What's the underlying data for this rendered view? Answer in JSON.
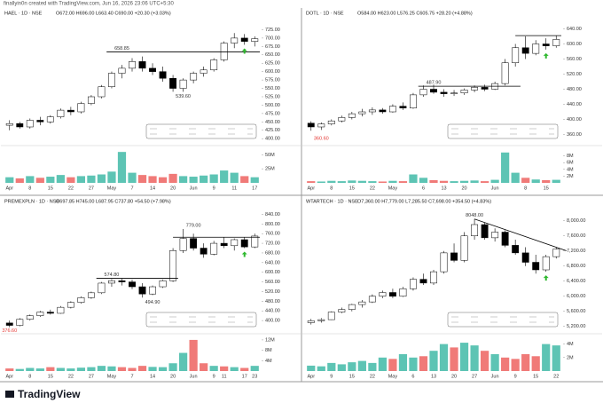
{
  "header": "finallyin0n created with TradingView.com, Jun 16, 2026 23:06 UTC+5:30",
  "footer": "TradingView",
  "chart_data": [
    {
      "type": "candlestick",
      "title": "HAEL · 1D · NSE",
      "ohlc": "O672.00 H696.00 L663.40 C690.00 +20.30 (+3.03%)",
      "categories": [
        "Apr",
        null,
        "8",
        null,
        "15",
        null,
        "22",
        null,
        "27",
        null,
        "May",
        null,
        "7",
        null,
        "14",
        null,
        "20",
        null,
        "Jun",
        null,
        "9",
        null,
        "11",
        null,
        "17"
      ],
      "open": [
        440,
        445,
        435,
        455,
        450,
        465,
        485,
        480,
        505,
        525,
        555,
        595,
        610,
        630,
        610,
        600,
        580,
        550,
        575,
        595,
        605,
        635,
        685,
        700,
        690
      ],
      "high": [
        455,
        450,
        460,
        465,
        470,
        490,
        495,
        510,
        530,
        560,
        600,
        620,
        640,
        645,
        625,
        615,
        590,
        580,
        600,
        615,
        640,
        690,
        715,
        712,
        705
      ],
      "low": [
        425,
        430,
        430,
        440,
        445,
        460,
        470,
        475,
        500,
        520,
        550,
        580,
        600,
        600,
        590,
        570,
        540,
        540,
        565,
        585,
        600,
        630,
        670,
        680,
        675
      ],
      "close": [
        445,
        435,
        455,
        450,
        465,
        485,
        480,
        505,
        525,
        555,
        595,
        610,
        630,
        610,
        600,
        580,
        550,
        575,
        595,
        605,
        635,
        685,
        700,
        690,
        698
      ],
      "volume": [
        10,
        8,
        12,
        9,
        11,
        14,
        10,
        12,
        13,
        15,
        20,
        55,
        18,
        14,
        12,
        10,
        16,
        12,
        11,
        13,
        15,
        22,
        18,
        12,
        10
      ],
      "ylim": [
        390,
        750
      ],
      "yticks": [
        {
          "value": 400,
          "label": "400.00"
        },
        {
          "value": 425,
          "label": "425.00"
        },
        {
          "value": 450,
          "label": "450.00"
        },
        {
          "value": 475,
          "label": "475.00"
        },
        {
          "value": 500,
          "label": "500.00"
        },
        {
          "value": 525,
          "label": "525.00"
        },
        {
          "value": 550,
          "label": "550.00"
        },
        {
          "value": 575,
          "label": "575.00"
        },
        {
          "value": 600,
          "label": "600.00"
        },
        {
          "value": 625,
          "label": "625.00"
        },
        {
          "value": 650,
          "label": "650.00"
        },
        {
          "value": 675,
          "label": "675.00"
        },
        {
          "value": 700,
          "label": "700.00"
        },
        {
          "value": 725,
          "label": "725.00"
        }
      ],
      "vol_ylim": [
        0,
        60
      ],
      "vol_yticks": [
        {
          "value": 25,
          "label": "25M"
        },
        {
          "value": 50,
          "label": "50M"
        }
      ],
      "up_color": "#ffffff",
      "down_color": "#000000",
      "annotations": [
        {
          "label": "658.85",
          "value": 658.85
        },
        {
          "label": "539.60",
          "value": 539.6
        }
      ]
    },
    {
      "type": "candlestick",
      "title": "DOTL · 1D · NSE",
      "ohlc": "O584.00 H623.00 L576.25 C605.75 +28.20 (+4.88%)",
      "categories": [
        "Apr",
        null,
        "8",
        null,
        "15",
        null,
        "22",
        null,
        "May",
        null,
        null,
        "6",
        null,
        "13",
        null,
        "20",
        null,
        null,
        "Jun",
        null,
        null,
        "8",
        null,
        "15",
        null
      ],
      "open": [
        390,
        380,
        388,
        396,
        405,
        415,
        420,
        425,
        420,
        435,
        430,
        465,
        480,
        472,
        468,
        470,
        478,
        485,
        480,
        495,
        550,
        590,
        575,
        600,
        595
      ],
      "high": [
        395,
        392,
        400,
        410,
        420,
        428,
        432,
        430,
        440,
        445,
        470,
        490,
        492,
        480,
        478,
        482,
        490,
        492,
        500,
        560,
        600,
        620,
        610,
        615,
        622
      ],
      "low": [
        370,
        372,
        384,
        392,
        400,
        408,
        412,
        415,
        418,
        425,
        428,
        460,
        468,
        460,
        462,
        465,
        472,
        475,
        478,
        490,
        540,
        560,
        570,
        585,
        590
      ],
      "close": [
        380,
        388,
        396,
        405,
        415,
        420,
        425,
        420,
        435,
        430,
        465,
        480,
        472,
        468,
        470,
        478,
        485,
        480,
        495,
        550,
        590,
        575,
        600,
        595,
        612
      ],
      "volume": [
        0.5,
        0.4,
        0.6,
        0.5,
        0.7,
        0.6,
        0.5,
        0.4,
        0.6,
        0.5,
        2.5,
        1.5,
        0.8,
        0.6,
        0.5,
        0.6,
        0.7,
        0.5,
        0.9,
        9,
        3,
        1.5,
        1,
        0.8,
        0.9
      ],
      "ylim": [
        340,
        660
      ],
      "yticks": [
        {
          "value": 360,
          "label": "360.00"
        },
        {
          "value": 400,
          "label": "400.00"
        },
        {
          "value": 440,
          "label": "440.00"
        },
        {
          "value": 480,
          "label": "480.00"
        },
        {
          "value": 520,
          "label": "520.00"
        },
        {
          "value": 560,
          "label": "560.00"
        },
        {
          "value": 600,
          "label": "600.00"
        },
        {
          "value": 640,
          "label": "640.00"
        }
      ],
      "vol_ylim": [
        0,
        10
      ],
      "vol_yticks": [
        {
          "value": 2,
          "label": "2M"
        },
        {
          "value": 4,
          "label": "4M"
        },
        {
          "value": 6,
          "label": "6M"
        },
        {
          "value": 8,
          "label": "8M"
        }
      ],
      "up_color": "#ffffff",
      "down_color": "#000000",
      "annotations": [
        {
          "label": "360.60",
          "value": 360.6
        },
        {
          "label": "487.90",
          "value": 487.9
        }
      ]
    },
    {
      "type": "candlestick",
      "title": "PREMEXPLN · 1D · NSE",
      "ohlc": "O697.85 H745.00 L687.95 C737.80 +54.50 (+7.98%)",
      "categories": [
        "Apr",
        null,
        "8",
        null,
        "15",
        null,
        "22",
        null,
        "27",
        null,
        "May",
        null,
        "7",
        null,
        "14",
        null,
        "20",
        null,
        "Jun",
        null,
        "9",
        "11",
        null,
        "17",
        "23"
      ],
      "open": [
        390,
        380,
        405,
        420,
        435,
        430,
        455,
        475,
        495,
        515,
        555,
        565,
        560,
        540,
        510,
        540,
        565,
        690,
        740,
        700,
        675,
        720,
        710,
        735,
        705
      ],
      "high": [
        400,
        410,
        425,
        440,
        445,
        460,
        480,
        500,
        520,
        560,
        572,
        575,
        570,
        555,
        545,
        570,
        700,
        779,
        760,
        720,
        730,
        745,
        740,
        745,
        760
      ],
      "low": [
        372,
        376,
        400,
        415,
        425,
        428,
        450,
        470,
        490,
        510,
        540,
        545,
        530,
        495,
        505,
        535,
        560,
        680,
        690,
        660,
        670,
        700,
        690,
        700,
        700
      ],
      "close": [
        380,
        405,
        420,
        435,
        430,
        455,
        475,
        495,
        515,
        555,
        565,
        560,
        540,
        510,
        540,
        565,
        690,
        740,
        700,
        675,
        720,
        710,
        735,
        705,
        750
      ],
      "volume": [
        1,
        0.8,
        1.2,
        1,
        1.5,
        1.2,
        1,
        1.3,
        1.5,
        2,
        1.8,
        1.5,
        1.2,
        2,
        1.6,
        1.5,
        3,
        7,
        12,
        3,
        2,
        1.8,
        1.5,
        1.2,
        2
      ],
      "ylim": [
        360,
        860
      ],
      "yticks": [
        {
          "value": 400,
          "label": "400.00"
        },
        {
          "value": 440,
          "label": "440.00"
        },
        {
          "value": 480,
          "label": "480.00"
        },
        {
          "value": 520,
          "label": "520.00"
        },
        {
          "value": 560,
          "label": "560.00"
        },
        {
          "value": 600,
          "label": "600.00"
        },
        {
          "value": 640,
          "label": "640.00"
        },
        {
          "value": 680,
          "label": "680.00"
        },
        {
          "value": 720,
          "label": "720.00"
        },
        {
          "value": 760,
          "label": "760.00"
        },
        {
          "value": 800,
          "label": "800.00"
        },
        {
          "value": 840,
          "label": "840.00"
        }
      ],
      "vol_ylim": [
        0,
        13
      ],
      "vol_yticks": [
        {
          "value": 4,
          "label": "4M"
        },
        {
          "value": 8,
          "label": "8M"
        },
        {
          "value": 12,
          "label": "12M"
        }
      ],
      "up_color": "#ffffff",
      "down_color": "#000000",
      "annotations": [
        {
          "label": "376.60",
          "value": 376.6
        },
        {
          "label": "574.80",
          "value": 574.8
        },
        {
          "label": "494.90",
          "value": 494.9
        },
        {
          "label": "779.00",
          "value": 779
        }
      ]
    },
    {
      "type": "candlestick",
      "title": "WTARTECH · 1D · NSE",
      "ohlc": "O7,360.00 H7,779.00 L7,285.50 C7,698.00 +354.50 (+4.83%)",
      "categories": [
        "Apr",
        null,
        "9",
        null,
        "15",
        null,
        "22",
        null,
        "May",
        null,
        "6",
        null,
        "13",
        null,
        "20",
        null,
        "27",
        null,
        "Jun",
        null,
        "9",
        null,
        "15",
        null,
        "22"
      ],
      "open": [
        5300,
        5350,
        5380,
        5580,
        5650,
        5780,
        5850,
        6000,
        6100,
        6000,
        6200,
        6450,
        6350,
        6650,
        7150,
        6950,
        7600,
        7900,
        7550,
        7700,
        7350,
        7150,
        6900,
        6700,
        7050
      ],
      "high": [
        5400,
        5420,
        5600,
        5700,
        5800,
        5900,
        6050,
        6150,
        6200,
        6250,
        6500,
        6600,
        6700,
        7200,
        7400,
        7700,
        8048,
        7950,
        7800,
        7750,
        7500,
        7300,
        7100,
        7100,
        7300
      ],
      "low": [
        5250,
        5300,
        5370,
        5550,
        5600,
        5700,
        5820,
        5950,
        5950,
        5980,
        6150,
        6300,
        6300,
        6600,
        6900,
        6900,
        7500,
        7500,
        7450,
        7300,
        7100,
        6800,
        6600,
        6650,
        7000
      ],
      "close": [
        5350,
        5380,
        5580,
        5650,
        5780,
        5850,
        6000,
        6100,
        6000,
        6200,
        6450,
        6350,
        6650,
        7150,
        6950,
        7600,
        7900,
        7550,
        7700,
        7350,
        7150,
        6900,
        6700,
        7050,
        7250
      ],
      "volume": [
        0.8,
        0.7,
        1.2,
        1,
        1.3,
        1.5,
        1.2,
        2,
        1.8,
        2.5,
        2,
        2.2,
        3,
        4,
        3.5,
        4.2,
        3.8,
        3,
        2.5,
        2,
        1.8,
        2.5,
        2.2,
        4,
        3.8
      ],
      "ylim": [
        5100,
        8300
      ],
      "yticks": [
        {
          "value": 5200,
          "label": "5,200.00"
        },
        {
          "value": 5600,
          "label": "5,600.00"
        },
        {
          "value": 6000,
          "label": "6,000.00"
        },
        {
          "value": 6400,
          "label": "6,400.00"
        },
        {
          "value": 6800,
          "label": "6,800.00"
        },
        {
          "value": 7200,
          "label": "7,200.00"
        },
        {
          "value": 7600,
          "label": "7,600.00"
        },
        {
          "value": 8000,
          "label": "8,000.00"
        }
      ],
      "vol_ylim": [
        0,
        5
      ],
      "vol_yticks": [
        {
          "value": 2,
          "label": "2M"
        },
        {
          "value": 4,
          "label": "4M"
        }
      ],
      "up_color": "#ffffff",
      "down_color": "#000000",
      "annotations": [
        {
          "label": "8048.00",
          "value": 8048
        }
      ]
    }
  ]
}
